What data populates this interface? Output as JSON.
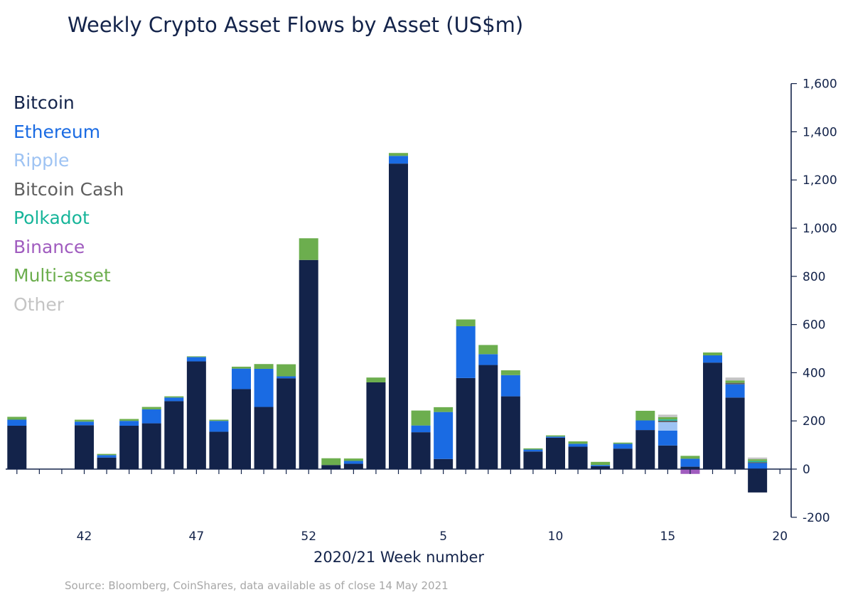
{
  "chart_data": {
    "type": "bar",
    "stacked": true,
    "title": "Weekly Crypto Asset Flows by Asset (US$m)",
    "xlabel": "2020/21 Week number",
    "ylabel": "",
    "ylim": [
      -200,
      1600
    ],
    "y_ticks": [
      -200,
      0,
      200,
      400,
      600,
      800,
      1000,
      1200,
      1400,
      1600
    ],
    "y_tick_labels": [
      "-200",
      "0",
      "200",
      "400",
      "600",
      "800",
      "1,000",
      "1,200",
      "1,400",
      "1,600"
    ],
    "x_ticks": [
      42,
      47,
      52,
      5,
      10,
      15,
      20
    ],
    "y_axis_position": "right",
    "legend_position": "top-left",
    "grid": false,
    "source": "Source: Bloomberg, CoinShares, data available as of close 14 May 2021",
    "categories": [
      39,
      40,
      41,
      42,
      43,
      44,
      45,
      46,
      47,
      48,
      49,
      50,
      51,
      52,
      53,
      1,
      2,
      3,
      4,
      5,
      6,
      7,
      8,
      9,
      10,
      11,
      12,
      13,
      14,
      15,
      16,
      17,
      18,
      19,
      20
    ],
    "series": [
      {
        "name": "Bitcoin",
        "color": "#13234a",
        "values": [
          180,
          0,
          0,
          182,
          48,
          180,
          190,
          282,
          447,
          155,
          332,
          258,
          377,
          868,
          17,
          22,
          360,
          1268,
          153,
          42,
          378,
          432,
          302,
          73,
          130,
          93,
          12,
          85,
          162,
          98,
          10,
          442,
          297,
          -97,
          0
        ]
      },
      {
        "name": "Ethereum",
        "color": "#1a6be3",
        "values": [
          25,
          0,
          0,
          15,
          10,
          20,
          58,
          15,
          18,
          45,
          85,
          158,
          8,
          0,
          0,
          12,
          0,
          32,
          28,
          195,
          215,
          45,
          88,
          8,
          5,
          12,
          5,
          20,
          40,
          62,
          33,
          30,
          55,
          25,
          0
        ]
      },
      {
        "name": "Ripple",
        "color": "#9ec3f3",
        "values": [
          0,
          0,
          0,
          0,
          0,
          0,
          0,
          0,
          0,
          0,
          0,
          0,
          0,
          0,
          0,
          0,
          0,
          0,
          0,
          0,
          0,
          0,
          0,
          0,
          0,
          0,
          0,
          0,
          0,
          35,
          0,
          0,
          0,
          0,
          0
        ]
      },
      {
        "name": "Bitcoin Cash",
        "color": "#5f5f5f",
        "values": [
          0,
          0,
          0,
          0,
          0,
          0,
          0,
          0,
          0,
          0,
          0,
          0,
          0,
          0,
          0,
          0,
          0,
          0,
          0,
          0,
          0,
          0,
          0,
          0,
          0,
          0,
          0,
          0,
          0,
          6,
          0,
          0,
          6,
          4,
          0
        ]
      },
      {
        "name": "Polkadot",
        "color": "#17b59a",
        "values": [
          0,
          0,
          0,
          0,
          0,
          0,
          0,
          0,
          0,
          0,
          0,
          0,
          0,
          0,
          0,
          0,
          0,
          0,
          0,
          0,
          0,
          0,
          0,
          0,
          0,
          0,
          0,
          0,
          0,
          5,
          0,
          0,
          0,
          4,
          0
        ]
      },
      {
        "name": "Binance",
        "color": "#a05cbf",
        "values": [
          0,
          0,
          0,
          0,
          0,
          0,
          0,
          0,
          0,
          0,
          0,
          0,
          0,
          0,
          0,
          0,
          0,
          0,
          0,
          0,
          0,
          0,
          0,
          0,
          0,
          0,
          0,
          0,
          0,
          0,
          -20,
          0,
          0,
          0,
          0
        ]
      },
      {
        "name": "Multi-asset",
        "color": "#6cae4e",
        "values": [
          12,
          0,
          0,
          8,
          5,
          8,
          10,
          5,
          3,
          5,
          8,
          20,
          50,
          90,
          28,
          10,
          20,
          12,
          62,
          20,
          28,
          38,
          20,
          5,
          5,
          10,
          13,
          5,
          40,
          10,
          12,
          12,
          10,
          8,
          0
        ]
      },
      {
        "name": "Other",
        "color": "#c4c4c4",
        "values": [
          0,
          0,
          0,
          0,
          0,
          0,
          0,
          0,
          0,
          0,
          0,
          0,
          0,
          0,
          0,
          0,
          0,
          0,
          0,
          0,
          0,
          0,
          0,
          0,
          0,
          0,
          0,
          0,
          0,
          10,
          0,
          0,
          12,
          7,
          0
        ]
      }
    ]
  }
}
